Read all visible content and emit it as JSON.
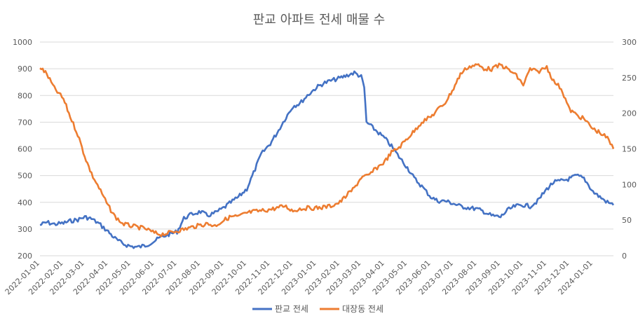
{
  "chart_data": {
    "type": "line",
    "title": "판교 아파트 전세 매물 수",
    "x_ticks": [
      "2022-01-01",
      "2022-02-01",
      "2022-03-01",
      "2022-04-01",
      "2022-05-01",
      "2022-06-01",
      "2022-07-01",
      "2022-08-01",
      "2022-09-01",
      "2022-10-01",
      "2022-11-01",
      "2022-12-01",
      "2023-01-01",
      "2023-02-01",
      "2023-03-01",
      "2023-04-01",
      "2023-05-01",
      "2023-06-01",
      "2023-07-01",
      "2023-08-01",
      "2023-09-01",
      "2023-10-01",
      "2023-11-01",
      "2023-12-01",
      "2024-01-01"
    ],
    "left_axis": {
      "ylim": [
        200,
        1000
      ],
      "ticks": [
        "200",
        "300",
        "400",
        "500",
        "600",
        "700",
        "800",
        "900",
        "1000"
      ]
    },
    "right_axis": {
      "ylim": [
        0,
        300
      ],
      "ticks": [
        "0",
        "50",
        "100",
        "150",
        "200",
        "250",
        "300"
      ]
    },
    "grid": true,
    "legend_position": "bottom",
    "series": [
      {
        "name": "판교 전세",
        "axis": "left",
        "color": "#4472C4",
        "points": [
          [
            "2022-01-01",
            315
          ],
          [
            "2022-01-10",
            325
          ],
          [
            "2022-01-20",
            318
          ],
          [
            "2022-02-01",
            322
          ],
          [
            "2022-02-10",
            330
          ],
          [
            "2022-02-20",
            335
          ],
          [
            "2022-03-01",
            345
          ],
          [
            "2022-03-10",
            338
          ],
          [
            "2022-03-20",
            320
          ],
          [
            "2022-04-01",
            290
          ],
          [
            "2022-04-10",
            265
          ],
          [
            "2022-04-20",
            245
          ],
          [
            "2022-05-01",
            235
          ],
          [
            "2022-05-10",
            232
          ],
          [
            "2022-05-20",
            238
          ],
          [
            "2022-06-01",
            255
          ],
          [
            "2022-06-10",
            270
          ],
          [
            "2022-06-20",
            280
          ],
          [
            "2022-07-01",
            290
          ],
          [
            "2022-07-10",
            340
          ],
          [
            "2022-07-20",
            355
          ],
          [
            "2022-08-01",
            365
          ],
          [
            "2022-08-10",
            350
          ],
          [
            "2022-08-20",
            360
          ],
          [
            "2022-09-01",
            380
          ],
          [
            "2022-09-10",
            400
          ],
          [
            "2022-09-20",
            420
          ],
          [
            "2022-10-01",
            450
          ],
          [
            "2022-10-10",
            510
          ],
          [
            "2022-10-20",
            580
          ],
          [
            "2022-11-01",
            620
          ],
          [
            "2022-11-10",
            660
          ],
          [
            "2022-11-20",
            710
          ],
          [
            "2022-12-01",
            760
          ],
          [
            "2022-12-10",
            770
          ],
          [
            "2022-12-20",
            800
          ],
          [
            "2023-01-01",
            830
          ],
          [
            "2023-01-10",
            845
          ],
          [
            "2023-01-20",
            855
          ],
          [
            "2023-02-01",
            865
          ],
          [
            "2023-02-10",
            875
          ],
          [
            "2023-02-20",
            885
          ],
          [
            "2023-03-01",
            870
          ],
          [
            "2023-03-05",
            830
          ],
          [
            "2023-03-08",
            700
          ],
          [
            "2023-03-20",
            670
          ],
          [
            "2023-04-01",
            640
          ],
          [
            "2023-04-10",
            610
          ],
          [
            "2023-04-20",
            570
          ],
          [
            "2023-05-01",
            530
          ],
          [
            "2023-05-10",
            490
          ],
          [
            "2023-05-20",
            460
          ],
          [
            "2023-06-01",
            420
          ],
          [
            "2023-06-10",
            405
          ],
          [
            "2023-06-20",
            405
          ],
          [
            "2023-07-01",
            395
          ],
          [
            "2023-07-10",
            385
          ],
          [
            "2023-07-20",
            380
          ],
          [
            "2023-08-01",
            375
          ],
          [
            "2023-08-10",
            365
          ],
          [
            "2023-08-20",
            350
          ],
          [
            "2023-09-01",
            345
          ],
          [
            "2023-09-10",
            370
          ],
          [
            "2023-09-20",
            385
          ],
          [
            "2023-10-01",
            390
          ],
          [
            "2023-10-10",
            385
          ],
          [
            "2023-10-20",
            405
          ],
          [
            "2023-11-01",
            450
          ],
          [
            "2023-11-10",
            475
          ],
          [
            "2023-11-20",
            480
          ],
          [
            "2023-12-01",
            488
          ],
          [
            "2023-12-10",
            500
          ],
          [
            "2023-12-20",
            490
          ],
          [
            "2024-01-01",
            440
          ],
          [
            "2024-01-10",
            420
          ],
          [
            "2024-01-20",
            400
          ],
          [
            "2024-01-28",
            390
          ]
        ]
      },
      {
        "name": "대장동 전세",
        "axis": "right",
        "color": "#ED7D31",
        "points": [
          [
            "2022-01-01",
            265
          ],
          [
            "2022-01-10",
            255
          ],
          [
            "2022-01-20",
            235
          ],
          [
            "2022-02-01",
            220
          ],
          [
            "2022-02-10",
            195
          ],
          [
            "2022-02-20",
            170
          ],
          [
            "2022-03-01",
            140
          ],
          [
            "2022-03-10",
            115
          ],
          [
            "2022-03-20",
            95
          ],
          [
            "2022-04-01",
            70
          ],
          [
            "2022-04-10",
            55
          ],
          [
            "2022-04-20",
            45
          ],
          [
            "2022-05-01",
            42
          ],
          [
            "2022-05-10",
            40
          ],
          [
            "2022-05-20",
            38
          ],
          [
            "2022-06-01",
            32
          ],
          [
            "2022-06-10",
            30
          ],
          [
            "2022-06-20",
            32
          ],
          [
            "2022-07-01",
            35
          ],
          [
            "2022-07-10",
            37
          ],
          [
            "2022-07-20",
            40
          ],
          [
            "2022-08-01",
            43
          ],
          [
            "2022-08-10",
            45
          ],
          [
            "2022-08-20",
            42
          ],
          [
            "2022-09-01",
            50
          ],
          [
            "2022-09-10",
            55
          ],
          [
            "2022-09-20",
            55
          ],
          [
            "2022-10-01",
            60
          ],
          [
            "2022-10-10",
            62
          ],
          [
            "2022-10-20",
            63
          ],
          [
            "2022-11-01",
            65
          ],
          [
            "2022-11-10",
            67
          ],
          [
            "2022-11-20",
            70
          ],
          [
            "2022-12-01",
            63
          ],
          [
            "2022-12-10",
            66
          ],
          [
            "2022-12-20",
            67
          ],
          [
            "2023-01-01",
            67
          ],
          [
            "2023-01-10",
            68
          ],
          [
            "2023-01-20",
            70
          ],
          [
            "2023-02-01",
            75
          ],
          [
            "2023-02-10",
            85
          ],
          [
            "2023-02-20",
            95
          ],
          [
            "2023-03-01",
            110
          ],
          [
            "2023-03-10",
            112
          ],
          [
            "2023-03-20",
            122
          ],
          [
            "2023-04-01",
            132
          ],
          [
            "2023-04-10",
            145
          ],
          [
            "2023-04-20",
            152
          ],
          [
            "2023-05-01",
            165
          ],
          [
            "2023-05-10",
            175
          ],
          [
            "2023-05-20",
            188
          ],
          [
            "2023-06-01",
            195
          ],
          [
            "2023-06-10",
            205
          ],
          [
            "2023-06-20",
            215
          ],
          [
            "2023-07-01",
            235
          ],
          [
            "2023-07-10",
            255
          ],
          [
            "2023-07-20",
            265
          ],
          [
            "2023-08-01",
            268
          ],
          [
            "2023-08-10",
            263
          ],
          [
            "2023-08-20",
            262
          ],
          [
            "2023-09-01",
            268
          ],
          [
            "2023-09-10",
            262
          ],
          [
            "2023-09-20",
            255
          ],
          [
            "2023-10-01",
            240
          ],
          [
            "2023-10-10",
            262
          ],
          [
            "2023-10-20",
            258
          ],
          [
            "2023-11-01",
            265
          ],
          [
            "2023-11-10",
            245
          ],
          [
            "2023-11-20",
            235
          ],
          [
            "2023-12-01",
            205
          ],
          [
            "2023-12-10",
            198
          ],
          [
            "2023-12-20",
            192
          ],
          [
            "2024-01-01",
            178
          ],
          [
            "2024-01-10",
            173
          ],
          [
            "2024-01-20",
            165
          ],
          [
            "2024-01-28",
            150
          ]
        ]
      }
    ]
  }
}
